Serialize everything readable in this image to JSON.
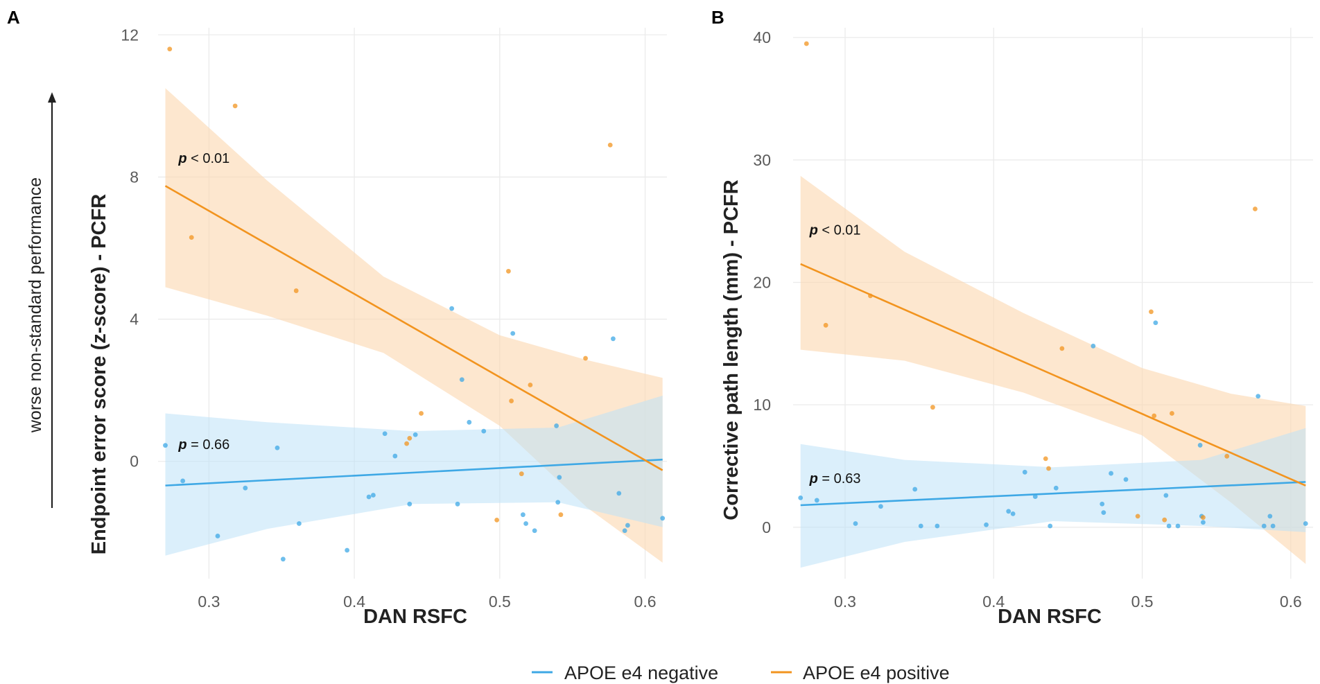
{
  "colors": {
    "negative": "#3ea8e5",
    "positive": "#f2941f",
    "negative_band": "#bde2f7",
    "positive_band": "#fbd8b2"
  },
  "side_note": "worse non-standard performance",
  "legend": {
    "items": [
      {
        "label": "APOE e4 negative",
        "color": "#3ea8e5"
      },
      {
        "label": "APOE e4 positive",
        "color": "#f2941f"
      }
    ]
  },
  "chart_data": [
    {
      "panel": "A",
      "type": "scatter",
      "xlabel": "DAN RSFC",
      "ylabel": "Endpoint error score (z-score) - PCFR",
      "xlim": [
        0.265,
        0.615
      ],
      "ylim": [
        -3.3,
        12.2
      ],
      "xticks": [
        0.3,
        0.4,
        0.5,
        0.6
      ],
      "xtick_labels": [
        "0.3",
        "0.4",
        "0.5",
        "0.6"
      ],
      "yticks": [
        0,
        4,
        8,
        12
      ],
      "ytick_labels": [
        "0",
        "4",
        "8",
        "12"
      ],
      "annotations": [
        {
          "p_symbol": "p",
          "text": " < 0.01",
          "x": 0.279,
          "y": 8.4,
          "series": "APOE e4 positive"
        },
        {
          "p_symbol": "p",
          "text": " = 0.66",
          "x": 0.279,
          "y": 0.35,
          "series": "APOE e4 negative"
        }
      ],
      "series": [
        {
          "name": "APOE e4 negative",
          "points": [
            [
              0.27,
              0.45
            ],
            [
              0.282,
              -0.55
            ],
            [
              0.306,
              -2.1
            ],
            [
              0.325,
              -0.75
            ],
            [
              0.347,
              0.38
            ],
            [
              0.351,
              -2.75
            ],
            [
              0.362,
              -1.75
            ],
            [
              0.395,
              -2.5
            ],
            [
              0.41,
              -1.0
            ],
            [
              0.413,
              -0.95
            ],
            [
              0.421,
              0.78
            ],
            [
              0.428,
              0.15
            ],
            [
              0.438,
              -1.2
            ],
            [
              0.442,
              0.75
            ],
            [
              0.467,
              4.3
            ],
            [
              0.471,
              -1.2
            ],
            [
              0.474,
              2.3
            ],
            [
              0.479,
              1.1
            ],
            [
              0.489,
              0.85
            ],
            [
              0.509,
              3.6
            ],
            [
              0.516,
              -1.5
            ],
            [
              0.518,
              -1.75
            ],
            [
              0.524,
              -1.95
            ],
            [
              0.539,
              1.0
            ],
            [
              0.54,
              -1.15
            ],
            [
              0.541,
              -0.45
            ],
            [
              0.578,
              3.45
            ],
            [
              0.582,
              -0.9
            ],
            [
              0.586,
              -1.95
            ],
            [
              0.588,
              -1.8
            ],
            [
              0.612,
              -1.6
            ]
          ],
          "fit": {
            "x": [
              0.27,
              0.612
            ],
            "y": [
              -0.68,
              0.05
            ]
          },
          "ci_band": {
            "x": [
              0.27,
              0.34,
              0.44,
              0.54,
              0.612
            ],
            "upper": [
              1.35,
              1.1,
              0.85,
              0.95,
              1.85
            ],
            "lower": [
              -2.65,
              -1.9,
              -1.2,
              -1.15,
              -1.85
            ]
          }
        },
        {
          "name": "APOE e4 positive",
          "points": [
            [
              0.273,
              11.6
            ],
            [
              0.288,
              6.3
            ],
            [
              0.318,
              10.0
            ],
            [
              0.36,
              4.8
            ],
            [
              0.436,
              0.5
            ],
            [
              0.438,
              0.65
            ],
            [
              0.446,
              1.35
            ],
            [
              0.498,
              -1.65
            ],
            [
              0.506,
              5.35
            ],
            [
              0.508,
              1.7
            ],
            [
              0.515,
              -0.35
            ],
            [
              0.521,
              2.15
            ],
            [
              0.542,
              -1.5
            ],
            [
              0.559,
              2.9
            ],
            [
              0.576,
              8.9
            ]
          ],
          "fit": {
            "x": [
              0.27,
              0.612
            ],
            "y": [
              7.75,
              -0.25
            ]
          },
          "ci_band": {
            "x": [
              0.27,
              0.34,
              0.42,
              0.5,
              0.56,
              0.612
            ],
            "upper": [
              10.5,
              7.9,
              5.2,
              3.55,
              2.85,
              2.35
            ],
            "lower": [
              4.9,
              4.1,
              3.05,
              1.0,
              -1.3,
              -2.85
            ]
          }
        }
      ]
    },
    {
      "panel": "B",
      "type": "scatter",
      "xlabel": "DAN RSFC",
      "ylabel": "Corrective path length (mm) - PCFR",
      "xlim": [
        0.265,
        0.615
      ],
      "ylim": [
        -4.2,
        40.8
      ],
      "xticks": [
        0.3,
        0.4,
        0.5,
        0.6
      ],
      "xtick_labels": [
        "0.3",
        "0.4",
        "0.5",
        "0.6"
      ],
      "yticks": [
        0,
        10,
        20,
        30,
        40
      ],
      "ytick_labels": [
        "0",
        "10",
        "20",
        "30",
        "40"
      ],
      "annotations": [
        {
          "p_symbol": "p",
          "text": " < 0.01",
          "x": 0.276,
          "y": 23.9,
          "series": "APOE e4 positive"
        },
        {
          "p_symbol": "p",
          "text": " = 0.63",
          "x": 0.276,
          "y": 3.6,
          "series": "APOE e4 negative"
        }
      ],
      "series": [
        {
          "name": "APOE e4 negative",
          "points": [
            [
              0.27,
              2.4
            ],
            [
              0.281,
              2.2
            ],
            [
              0.307,
              0.3
            ],
            [
              0.324,
              1.7
            ],
            [
              0.347,
              3.1
            ],
            [
              0.351,
              0.1
            ],
            [
              0.362,
              0.1
            ],
            [
              0.395,
              0.2
            ],
            [
              0.41,
              1.3
            ],
            [
              0.413,
              1.1
            ],
            [
              0.421,
              4.5
            ],
            [
              0.428,
              2.5
            ],
            [
              0.438,
              0.1
            ],
            [
              0.442,
              3.2
            ],
            [
              0.467,
              14.8
            ],
            [
              0.473,
              1.9
            ],
            [
              0.474,
              1.2
            ],
            [
              0.479,
              4.4
            ],
            [
              0.489,
              3.9
            ],
            [
              0.509,
              16.7
            ],
            [
              0.516,
              2.6
            ],
            [
              0.518,
              0.1
            ],
            [
              0.524,
              0.1
            ],
            [
              0.539,
              6.7
            ],
            [
              0.54,
              0.9
            ],
            [
              0.541,
              0.4
            ],
            [
              0.578,
              10.7
            ],
            [
              0.582,
              0.1
            ],
            [
              0.586,
              0.9
            ],
            [
              0.588,
              0.1
            ],
            [
              0.61,
              0.3
            ]
          ],
          "fit": {
            "x": [
              0.27,
              0.61
            ],
            "y": [
              1.8,
              3.7
            ]
          },
          "ci_band": {
            "x": [
              0.27,
              0.34,
              0.44,
              0.54,
              0.61
            ],
            "upper": [
              6.8,
              5.5,
              4.9,
              5.5,
              8.1
            ],
            "lower": [
              -3.3,
              -1.2,
              0.5,
              0.1,
              -0.4
            ]
          }
        },
        {
          "name": "APOE e4 positive",
          "points": [
            [
              0.274,
              39.5
            ],
            [
              0.287,
              16.5
            ],
            [
              0.317,
              18.9
            ],
            [
              0.359,
              9.8
            ],
            [
              0.435,
              5.6
            ],
            [
              0.437,
              4.8
            ],
            [
              0.446,
              14.6
            ],
            [
              0.497,
              0.9
            ],
            [
              0.506,
              17.6
            ],
            [
              0.508,
              9.1
            ],
            [
              0.515,
              0.6
            ],
            [
              0.52,
              9.3
            ],
            [
              0.541,
              0.8
            ],
            [
              0.557,
              5.8
            ],
            [
              0.576,
              26.0
            ]
          ],
          "fit": {
            "x": [
              0.27,
              0.61
            ],
            "y": [
              21.5,
              3.4
            ]
          },
          "ci_band": {
            "x": [
              0.27,
              0.34,
              0.42,
              0.5,
              0.56,
              0.61
            ],
            "upper": [
              28.7,
              22.5,
              17.5,
              13.0,
              10.9,
              9.9
            ],
            "lower": [
              14.5,
              13.6,
              11.0,
              7.5,
              2.0,
              -3.0
            ]
          }
        }
      ]
    }
  ]
}
